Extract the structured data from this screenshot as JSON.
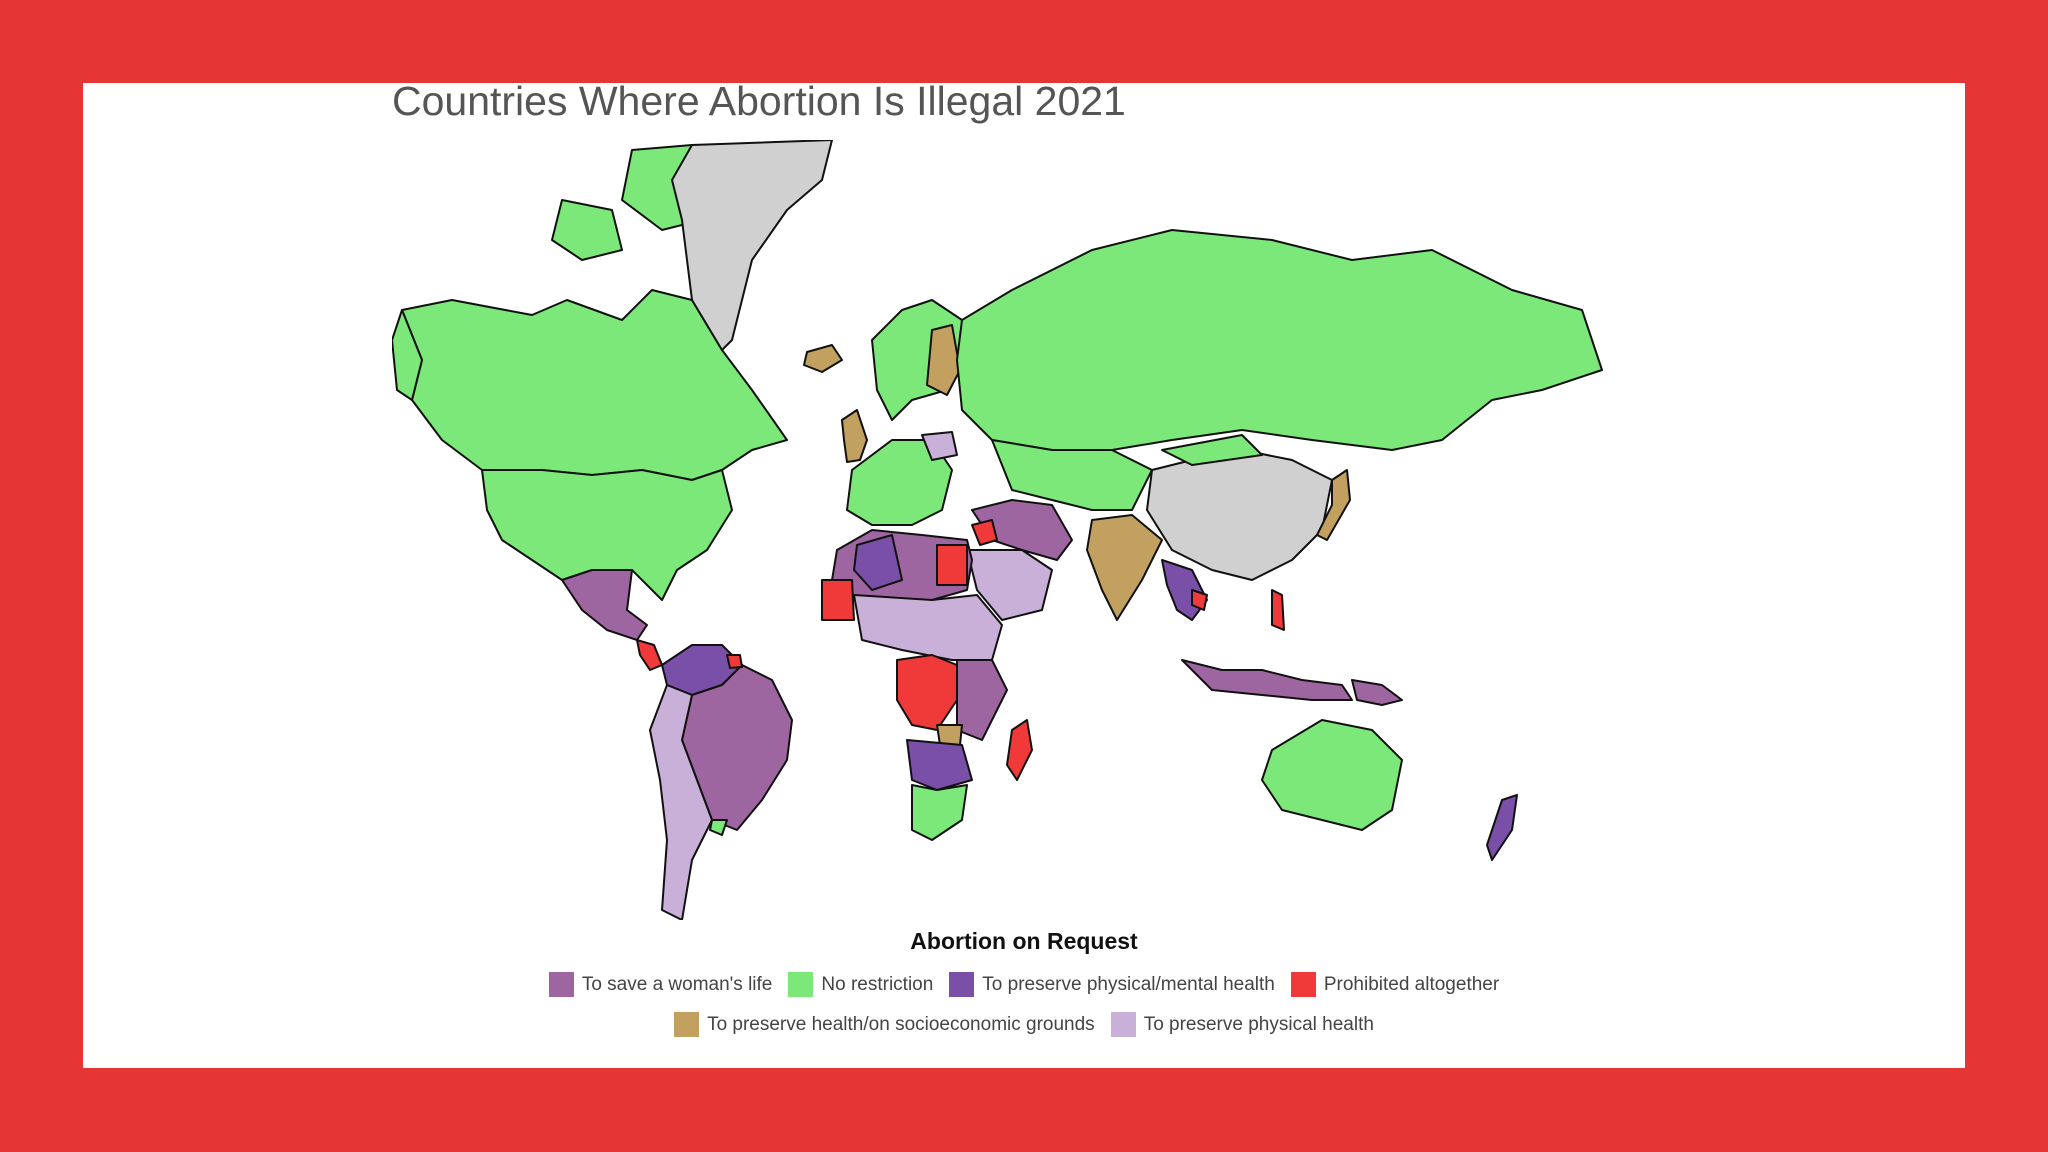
{
  "map": {
    "title": "Countries Where Abortion Is Illegal 2021",
    "legend_title": "Abortion on Request",
    "colors": {
      "no_data": "#d0d0d0",
      "border": "#111111"
    },
    "legend": [
      {
        "key": "life",
        "label": "To save a woman's life",
        "color": "#9e66a0"
      },
      {
        "key": "none",
        "label": "No restriction",
        "color": "#7de87a"
      },
      {
        "key": "mental",
        "label": "To preserve physical/mental health",
        "color": "#7a4fa8"
      },
      {
        "key": "prohibited",
        "label": "Prohibited altogether",
        "color": "#f03a3a"
      },
      {
        "key": "socio",
        "label": "To preserve health/on socioeconomic grounds",
        "color": "#c2a060"
      },
      {
        "key": "physical",
        "label": "To preserve physical health",
        "color": "#c9b0d8"
      }
    ]
  }
}
